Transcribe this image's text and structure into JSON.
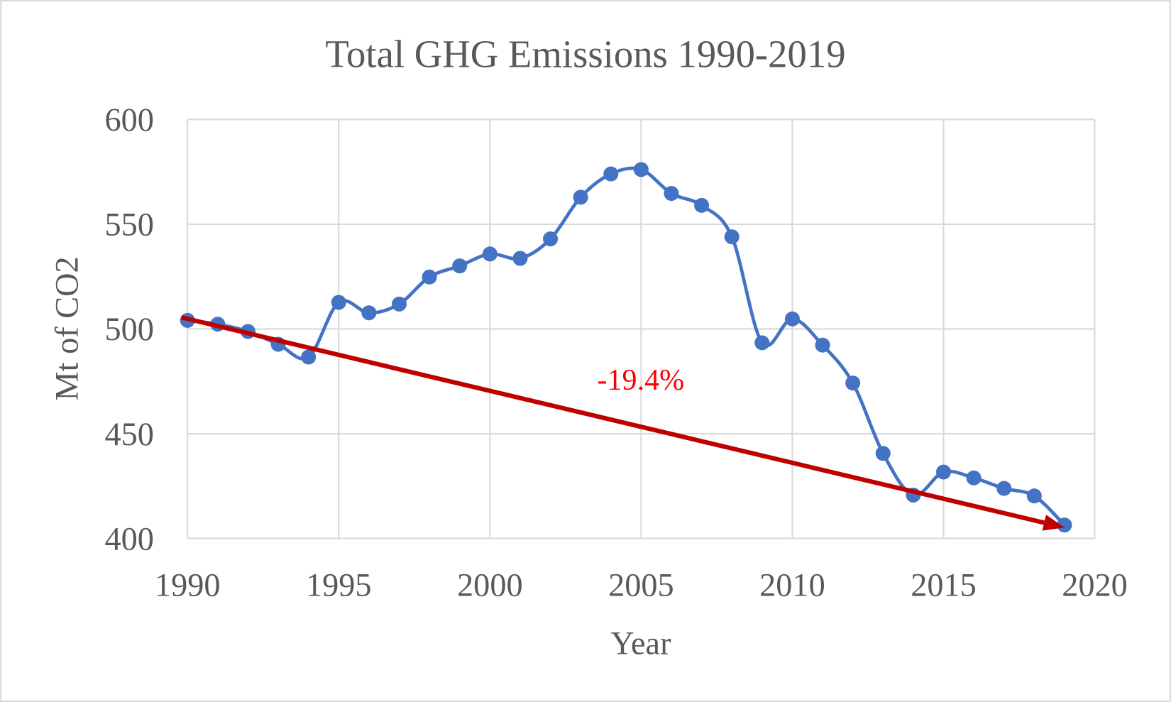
{
  "chart_data": {
    "type": "line",
    "title": "Total GHG Emissions 1990-2019",
    "xlabel": "Year",
    "ylabel": "Mt of CO2",
    "xlim": [
      1990,
      2020
    ],
    "ylim": [
      400,
      600
    ],
    "x_ticks": [
      1990,
      1995,
      2000,
      2005,
      2010,
      2015,
      2020
    ],
    "y_ticks": [
      400,
      450,
      500,
      550,
      600
    ],
    "grid": true,
    "smoothed": true,
    "series": [
      {
        "color": "#4472C4",
        "x": [
          1990,
          1991,
          1992,
          1993,
          1994,
          1995,
          1996,
          1997,
          1998,
          1999,
          2000,
          2001,
          2002,
          2003,
          2004,
          2005,
          2006,
          2007,
          2008,
          2009,
          2010,
          2011,
          2012,
          2013,
          2014,
          2015,
          2016,
          2017,
          2018,
          2019
        ],
        "y": [
          504.1,
          502.3,
          498.8,
          492.7,
          486.6,
          512.7,
          507.7,
          511.9,
          524.8,
          530.1,
          535.8,
          533.7,
          543.0,
          562.9,
          574.0,
          576.1,
          564.7,
          559.0,
          544.0,
          493.4,
          504.8,
          492.3,
          474.2,
          440.6,
          420.7,
          431.7,
          428.9,
          423.9,
          420.3,
          406.4
        ]
      }
    ],
    "trend_arrow": {
      "color": "#C00000",
      "from": [
        1989.8,
        505.5
      ],
      "to": [
        2019.0,
        405.2
      ],
      "label": "-19.4%",
      "label_color": "#FF0000"
    }
  }
}
